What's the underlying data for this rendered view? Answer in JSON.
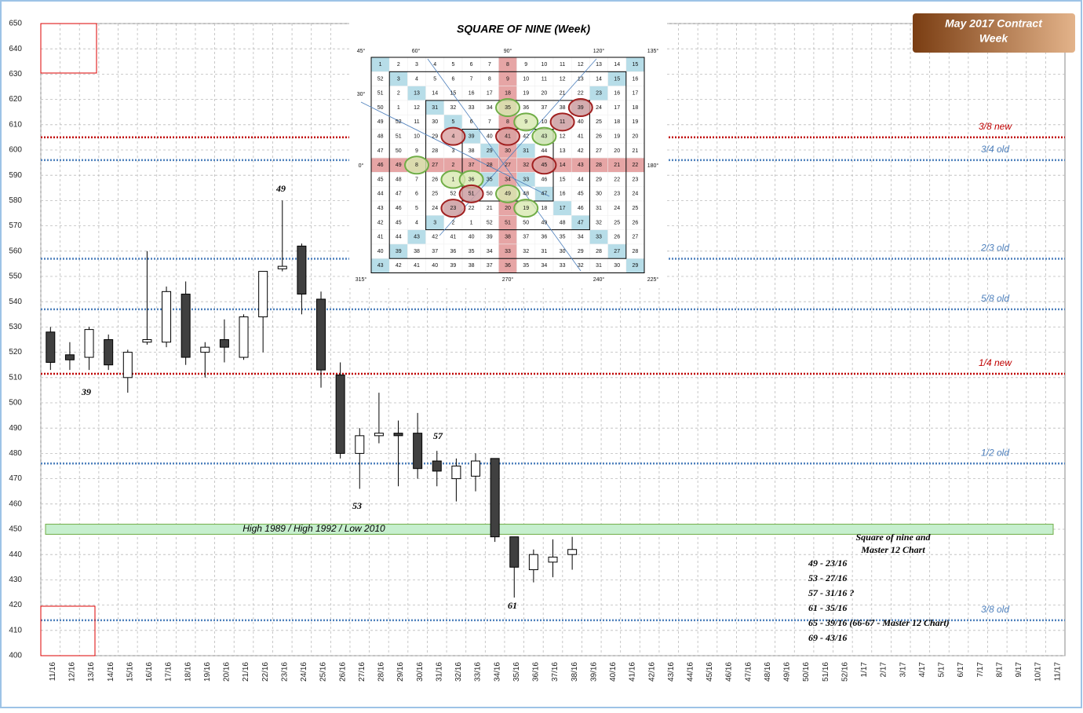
{
  "chart_data": {
    "type": "candlestick",
    "title_box": [
      "May 2017 Contract",
      "Week"
    ],
    "categories": [
      "11/16",
      "12/16",
      "13/16",
      "14/16",
      "15/16",
      "16/16",
      "17/16",
      "18/16",
      "19/16",
      "20/16",
      "21/16",
      "22/16",
      "23/16",
      "24/16",
      "25/16",
      "26/16",
      "27/16",
      "28/16",
      "29/16",
      "30/16",
      "31/16",
      "32/16",
      "33/16",
      "34/16",
      "35/16",
      "36/16",
      "37/16",
      "38/16",
      "39/16",
      "40/16",
      "41/16",
      "42/16",
      "43/16",
      "44/16",
      "45/16",
      "46/16",
      "47/16",
      "48/16",
      "49/16",
      "50/16",
      "51/16",
      "52/16",
      "1/17",
      "2/17",
      "3/17",
      "4/17",
      "5/17",
      "6/17",
      "7/17",
      "8/17",
      "9/17",
      "10/17",
      "11/17"
    ],
    "open": [
      528,
      519,
      518,
      525,
      510,
      524,
      524,
      543,
      520,
      525,
      518,
      534,
      553,
      562,
      541,
      511,
      480,
      487,
      488,
      488,
      477,
      470,
      471,
      478,
      447,
      434,
      437,
      440,
      null,
      null,
      null,
      null,
      null,
      null,
      null,
      null,
      null,
      null,
      null,
      null,
      null,
      null,
      null,
      null,
      null,
      null,
      null,
      null,
      null,
      null,
      null,
      null,
      null
    ],
    "high": [
      530,
      524,
      530,
      527,
      521,
      560,
      546,
      548,
      524,
      533,
      535,
      552,
      580,
      563,
      544,
      516,
      490,
      504,
      493,
      496,
      481,
      478,
      480,
      478,
      447,
      442,
      446,
      447,
      null,
      null,
      null,
      null,
      null,
      null,
      null,
      null,
      null,
      null,
      null,
      null,
      null,
      null,
      null,
      null,
      null,
      null,
      null,
      null,
      null,
      null,
      null,
      null,
      null
    ],
    "low": [
      513,
      513,
      513,
      513,
      504,
      523,
      522,
      515,
      510,
      516,
      517,
      520,
      552,
      535,
      506,
      478,
      466,
      484,
      467,
      470,
      467,
      461,
      465,
      445,
      423,
      429,
      431,
      434,
      null,
      null,
      null,
      null,
      null,
      null,
      null,
      null,
      null,
      null,
      null,
      null,
      null,
      null,
      null,
      null,
      null,
      null,
      null,
      null,
      null,
      null,
      null,
      null,
      null
    ],
    "close": [
      516,
      517,
      529,
      515,
      520,
      525,
      544,
      518,
      522,
      522,
      534,
      552,
      554,
      543,
      513,
      480,
      487,
      488,
      487,
      474,
      473,
      475,
      477,
      447,
      435,
      440,
      439,
      442,
      null,
      null,
      null,
      null,
      null,
      null,
      null,
      null,
      null,
      null,
      null,
      null,
      null,
      null,
      null,
      null,
      null,
      null,
      null,
      null,
      null,
      null,
      null,
      null,
      null
    ],
    "up_color": "#ffffff",
    "down_color": "#404040",
    "ylim": [
      400,
      650
    ],
    "yticks": [
      400,
      410,
      420,
      430,
      440,
      450,
      460,
      470,
      480,
      490,
      500,
      510,
      520,
      530,
      540,
      550,
      560,
      570,
      580,
      590,
      600,
      610,
      620,
      630,
      640,
      650
    ],
    "grid": true,
    "levels": [
      {
        "label": "3/8 new",
        "value": 605,
        "color": "#c00000"
      },
      {
        "label": "3/4 old",
        "value": 596,
        "color": "#4f81bd"
      },
      {
        "label": "2/3 old",
        "value": 557,
        "color": "#4f81bd"
      },
      {
        "label": "5/8 old",
        "value": 537,
        "color": "#4f81bd"
      },
      {
        "label": "1/4 new",
        "value": 511.5,
        "color": "#c00000"
      },
      {
        "label": "1/2 old",
        "value": 476,
        "color": "#4f81bd"
      },
      {
        "label": "3/8 old",
        "value": 414,
        "color": "#4f81bd"
      }
    ],
    "band": {
      "label": "High 1989 / High 1992 / Low 2010",
      "range": [
        448,
        452
      ],
      "color": "#c6efce"
    },
    "annotations": [
      "39",
      "49",
      "53",
      "57",
      "61"
    ],
    "notes": [
      "Square of nine and",
      "Master 12 Chart",
      "49 - 23/16",
      "53 - 27/16",
      "57 - 31/16 ?",
      "61 - 35/16",
      "65 - 39/16   (66-67 - Master 12 Chart)",
      "69 - 43/16"
    ],
    "square": {
      "title": "SQUARE OF NINE (Week)",
      "degrees": [
        "45°",
        "60°",
        "90°",
        "120°",
        "135°",
        "30°",
        "0°",
        "180°",
        "315°",
        "270°",
        "240°",
        "225°"
      ],
      "rows": [
        [
          1,
          2,
          3,
          4,
          5,
          6,
          7,
          8,
          9,
          10,
          11,
          12,
          13,
          14,
          15
        ],
        [
          52,
          3,
          4,
          5,
          6,
          7,
          8,
          9,
          10,
          11,
          12,
          13,
          14,
          15,
          16
        ],
        [
          51,
          2,
          13,
          14,
          15,
          16,
          17,
          18,
          19,
          20,
          21,
          22,
          23,
          16,
          17
        ],
        [
          50,
          1,
          12,
          31,
          32,
          33,
          34,
          35,
          36,
          37,
          38,
          39,
          24,
          17,
          18
        ],
        [
          49,
          52,
          11,
          30,
          5,
          6,
          7,
          8,
          9,
          10,
          11,
          40,
          25,
          18,
          19
        ],
        [
          48,
          51,
          10,
          29,
          4,
          39,
          40,
          41,
          42,
          43,
          12,
          41,
          26,
          19,
          20
        ],
        [
          47,
          50,
          9,
          28,
          3,
          38,
          29,
          30,
          31,
          44,
          13,
          42,
          27,
          20,
          21
        ],
        [
          46,
          49,
          8,
          27,
          2,
          37,
          28,
          27,
          32,
          45,
          14,
          43,
          28,
          21,
          22
        ],
        [
          45,
          48,
          7,
          26,
          1,
          36,
          35,
          34,
          33,
          46,
          15,
          44,
          29,
          22,
          23
        ],
        [
          44,
          47,
          6,
          25,
          52,
          51,
          50,
          49,
          48,
          47,
          16,
          45,
          30,
          23,
          24
        ],
        [
          43,
          46,
          5,
          24,
          23,
          22,
          21,
          20,
          19,
          18,
          17,
          46,
          31,
          24,
          25
        ],
        [
          42,
          45,
          4,
          3,
          2,
          1,
          52,
          51,
          50,
          49,
          48,
          47,
          32,
          25,
          26
        ],
        [
          41,
          44,
          43,
          42,
          41,
          40,
          39,
          38,
          37,
          36,
          35,
          34,
          33,
          26,
          27
        ],
        [
          40,
          39,
          38,
          37,
          36,
          35,
          34,
          33,
          32,
          31,
          30,
          29,
          28,
          27,
          28
        ],
        [
          43,
          42,
          41,
          40,
          39,
          38,
          37,
          36,
          35,
          34,
          33,
          32,
          31,
          30,
          29
        ]
      ]
    }
  }
}
